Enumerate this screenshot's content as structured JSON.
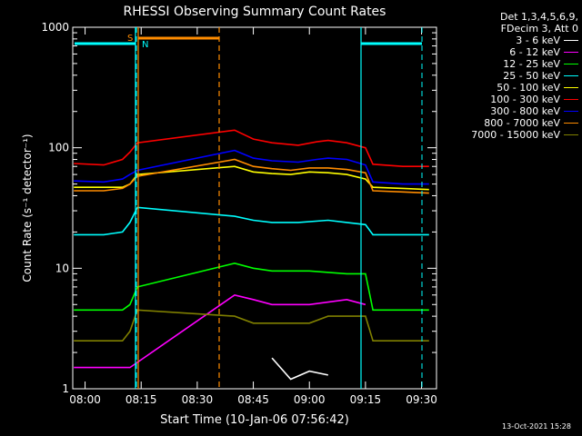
{
  "chart_data": {
    "type": "line",
    "title": "RHESSI Observing Summary Count Rates",
    "xlabel": "Start Time (10-Jan-06 07:56:42)",
    "ylabel": "Count Rate (s⁻¹ detector⁻¹)",
    "y_scale": "log",
    "ylim": [
      1,
      1000
    ],
    "xlim": [
      "07:56:42",
      "09:34:00"
    ],
    "x_ticks": [
      "08:00",
      "08:15",
      "08:30",
      "08:45",
      "09:00",
      "09:15",
      "09:30"
    ],
    "y_ticks": [
      "1",
      "10",
      "100",
      "1000"
    ],
    "legend": {
      "header": [
        "Det 1,3,4,5,6,9,",
        "FDecim 3, Att 0"
      ],
      "placement": "right-outside"
    },
    "markers": {
      "saa_label": "S",
      "night_label": "N"
    },
    "series": [
      {
        "name": "3 - 6 keV",
        "color": "#ffffff",
        "x": [
          "08:50",
          "08:55",
          "09:00",
          "09:05"
        ],
        "y": [
          1.8,
          1.2,
          1.4,
          1.3
        ]
      },
      {
        "name": "6 - 12 keV",
        "color": "#ff00ff",
        "x": [
          "07:57",
          "08:05",
          "08:10",
          "08:12",
          "08:40",
          "08:45",
          "08:50",
          "09:00",
          "09:10",
          "09:15"
        ],
        "y": [
          1.5,
          1.5,
          1.5,
          1.5,
          6,
          5.5,
          5,
          5,
          5.5,
          5
        ]
      },
      {
        "name": "12 - 25 keV",
        "color": "#00ff00",
        "x": [
          "07:57",
          "08:05",
          "08:10",
          "08:12",
          "08:14",
          "08:40",
          "08:45",
          "08:50",
          "09:00",
          "09:10",
          "09:15",
          "09:17",
          "09:25",
          "09:32"
        ],
        "y": [
          4.5,
          4.5,
          4.5,
          5,
          7,
          11,
          10,
          9.5,
          9.5,
          9,
          9,
          4.5,
          4.5,
          4.5
        ]
      },
      {
        "name": "25 - 50 keV",
        "color": "#00ffff",
        "x": [
          "07:57",
          "08:05",
          "08:10",
          "08:12",
          "08:14",
          "08:40",
          "08:45",
          "08:50",
          "08:57",
          "09:05",
          "09:10",
          "09:15",
          "09:17",
          "09:25",
          "09:32"
        ],
        "y": [
          19,
          19,
          20,
          24,
          32,
          27,
          25,
          24,
          24,
          25,
          24,
          23,
          19,
          19,
          19
        ]
      },
      {
        "name": "50 - 100 keV",
        "color": "#ffff00",
        "x": [
          "07:57",
          "08:05",
          "08:10",
          "08:12",
          "08:14",
          "08:40",
          "08:45",
          "08:50",
          "08:55",
          "09:00",
          "09:05",
          "09:10",
          "09:15",
          "09:17",
          "09:25",
          "09:32"
        ],
        "y": [
          47,
          47,
          47,
          50,
          60,
          70,
          63,
          61,
          60,
          63,
          62,
          60,
          55,
          47,
          46,
          45
        ]
      },
      {
        "name": "100 - 300 keV",
        "color": "#ff0000",
        "x": [
          "07:57",
          "08:05",
          "08:10",
          "08:12",
          "08:14",
          "08:40",
          "08:45",
          "08:50",
          "08:57",
          "09:02",
          "09:05",
          "09:10",
          "09:15",
          "09:17",
          "09:25",
          "09:32"
        ],
        "y": [
          74,
          72,
          80,
          92,
          110,
          140,
          118,
          110,
          105,
          112,
          115,
          110,
          100,
          73,
          70,
          70
        ]
      },
      {
        "name": "300 - 800 keV",
        "color": "#0000ff",
        "x": [
          "07:57",
          "08:05",
          "08:10",
          "08:12",
          "08:14",
          "08:40",
          "08:45",
          "08:50",
          "08:57",
          "09:02",
          "09:05",
          "09:10",
          "09:15",
          "09:17",
          "09:25",
          "09:32"
        ],
        "y": [
          53,
          52,
          55,
          60,
          65,
          95,
          82,
          78,
          76,
          80,
          82,
          80,
          72,
          52,
          50,
          50
        ]
      },
      {
        "name": "800 - 7000 keV",
        "color": "#ff8c00",
        "x": [
          "07:57",
          "08:05",
          "08:10",
          "08:12",
          "08:14",
          "08:40",
          "08:45",
          "08:50",
          "08:55",
          "09:00",
          "09:05",
          "09:10",
          "09:15",
          "09:17",
          "09:25",
          "09:32"
        ],
        "y": [
          44,
          44,
          46,
          50,
          58,
          80,
          70,
          67,
          65,
          68,
          68,
          66,
          62,
          44,
          43,
          42
        ]
      },
      {
        "name": "7000 - 15000 keV",
        "color": "#808000",
        "x": [
          "07:57",
          "08:05",
          "08:10",
          "08:12",
          "08:14",
          "08:40",
          "08:45",
          "08:50",
          "09:00",
          "09:05",
          "09:10",
          "09:15",
          "09:17",
          "09:25",
          "09:32"
        ],
        "y": [
          2.5,
          2.5,
          2.5,
          3,
          4.5,
          4,
          3.5,
          3.5,
          3.5,
          4,
          4,
          4,
          2.5,
          2.5,
          2.5
        ]
      }
    ]
  },
  "timestamp": "13-Oct-2021 15:28"
}
